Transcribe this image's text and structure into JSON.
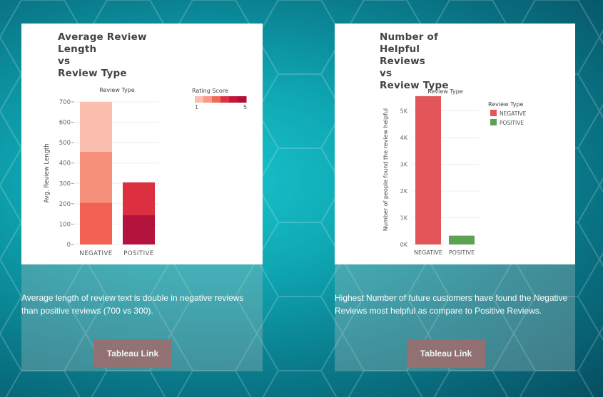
{
  "cards": [
    {
      "title": "Average Review\nLength\nvs\nReview Type",
      "description": "Average length of review text is double in negative reviews than positive reviews (700 vs 300).",
      "link_label": "Tableau Link"
    },
    {
      "title": "Number of Helpful\nReviews\nvs\nReview Type",
      "description": "Highest Number of future customers have found the Negative Reviews most helpful as compare to Positive Reviews.",
      "link_label": "Tableau Link"
    }
  ],
  "chart_data": [
    {
      "type": "bar",
      "stacked": true,
      "header": "Review Type",
      "categories": [
        "NEGATIVE",
        "POSITIVE"
      ],
      "ylabel": "Avg. Review Length",
      "ylim": [
        0,
        700
      ],
      "yticks": [
        "0",
        "100",
        "200",
        "300",
        "400",
        "500",
        "600",
        "700"
      ],
      "legend_title": "Rating Score",
      "legend_min": "1",
      "legend_max": "5",
      "legend_colors": [
        "#fbbfb0",
        "#f79a86",
        "#f06a5a",
        "#dc3343",
        "#c5173a",
        "#b0103a"
      ],
      "series": [
        {
          "color": "#f26252",
          "values": [
            205,
            0
          ]
        },
        {
          "color": "#f7907a",
          "values": [
            250,
            0
          ]
        },
        {
          "color": "#fbbfb0",
          "values": [
            245,
            0
          ]
        },
        {
          "color": "#b4133d",
          "values": [
            0,
            145
          ]
        },
        {
          "color": "#dc3040",
          "values": [
            0,
            160
          ]
        }
      ],
      "grid": true
    },
    {
      "type": "bar",
      "header": "Review Type",
      "categories": [
        "NEGATIVE",
        "POSITIVE"
      ],
      "values": [
        5550,
        330
      ],
      "colors": [
        "#e25659",
        "#5ba251"
      ],
      "ylabel": "Number of people found the review helpful",
      "ylim": [
        0,
        5600
      ],
      "yticks": [
        "0K",
        "1K",
        "2K",
        "3K",
        "4K",
        "5K"
      ],
      "legend_title": "Review Type",
      "legend": [
        {
          "name": "NEGATIVE",
          "color": "#e25659"
        },
        {
          "name": "POSITIVE",
          "color": "#5ba251"
        }
      ],
      "grid": true
    }
  ]
}
